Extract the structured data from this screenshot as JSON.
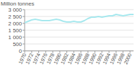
{
  "chart_data": {
    "type": "line",
    "y_label": "Million tonnes",
    "x": [
      1970,
      1971,
      1972,
      1973,
      1974,
      1975,
      1976,
      1977,
      1978,
      1979,
      1980,
      1981,
      1982,
      1983,
      1984,
      1985,
      1986,
      1987,
      1988,
      1989,
      1990,
      1991,
      1992,
      1993,
      1994,
      1995,
      1996,
      1997,
      1998,
      1999,
      2000,
      2001
    ],
    "values": [
      2050,
      2150,
      2250,
      2300,
      2250,
      2200,
      2200,
      2200,
      2250,
      2300,
      2250,
      2150,
      2100,
      2100,
      2150,
      2100,
      2100,
      2200,
      2350,
      2450,
      2450,
      2500,
      2450,
      2500,
      2550,
      2550,
      2650,
      2600,
      2550,
      2600,
      2650,
      2650
    ],
    "color": "#a6e8ee",
    "xlim": [
      1970,
      2001
    ],
    "xticks": [
      1970,
      1972,
      1974,
      1976,
      1978,
      1980,
      1982,
      1984,
      1986,
      1988,
      1990,
      1992,
      1994,
      1996,
      1998,
      2000
    ],
    "ylim": [
      0,
      3000
    ],
    "yticks": [
      0,
      500,
      {
        "value": 1000,
        "label": "1 000"
      },
      {
        "value": 1500,
        "label": "1 500"
      },
      {
        "value": 2000,
        "label": "2 000"
      },
      {
        "value": 2500,
        "label": "2 500"
      },
      {
        "value": 3000,
        "label": "3 000"
      }
    ],
    "grid": true
  }
}
